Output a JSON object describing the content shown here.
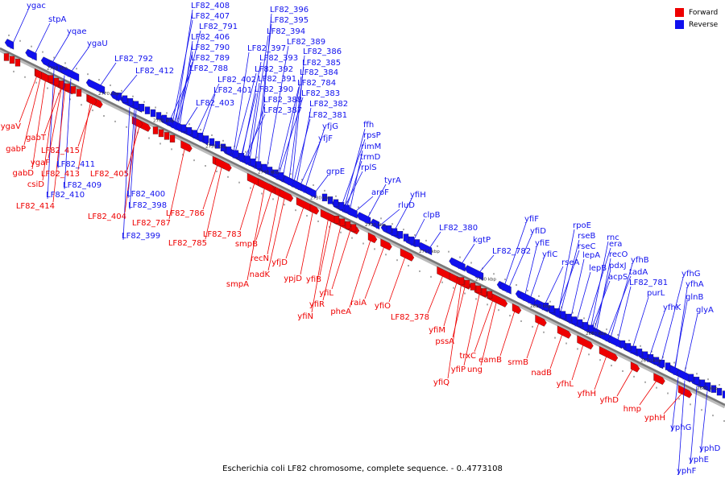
{
  "legend": {
    "forward_label": "Forward",
    "reverse_label": "Reverse",
    "forward_color": "#ee0000",
    "reverse_color": "#1010ee"
  },
  "caption": "Escherichia coli LF82 chromosome, complete sequence. - 0..4773108",
  "ticks": [
    "2780 kbp",
    "2770 kbp",
    "2760 kbp",
    "2750 kbp",
    "2740 kbp",
    "2730 kbp",
    "2720 kbp",
    "2710 kbp",
    "2700 kbp",
    "2690 kbp",
    "2680 kbp",
    "2670 kbp",
    "2660 kbp"
  ],
  "reverse_genes": [
    "ygac",
    "stpA",
    "yqae",
    "ygaU",
    "LF82_792",
    "LF82_412",
    "LF82_408",
    "LF82_407",
    "LF82_791",
    "LF82_406",
    "LF82_790",
    "LF82_789",
    "LF82_788",
    "LF82_402",
    "LF82_401",
    "LF82_403",
    "LF82_396",
    "LF82_395",
    "LF82_394",
    "LF82_397",
    "LF82_389",
    "LF82_393",
    "LF82_386",
    "LF82_392",
    "LF82_385",
    "LF82_391",
    "LF82_384",
    "LF82_390",
    "LF82_784",
    "LF82_388",
    "LF82_383",
    "LF82_387",
    "LF82_382",
    "LF82_381",
    "yfjG",
    "yfjF",
    "ffh",
    "rpsP",
    "rimM",
    "trmD",
    "rplS",
    "grpE",
    "tyrA",
    "aroF",
    "yfiH",
    "rluD",
    "clpB",
    "LF82_380",
    "kgtP",
    "LF82_782",
    "yfiF",
    "yfiD",
    "yfiE",
    "yfiC",
    "rpoE",
    "rseB",
    "rseC",
    "rseA",
    "lepA",
    "lepB",
    "rnc",
    "era",
    "recO",
    "pdxJ",
    "acpS",
    "yfhB",
    "tadA",
    "LF82_781",
    "purL",
    "yfhK",
    "yfhG",
    "yfhA",
    "glnB",
    "glyA",
    "yphG",
    "yphD",
    "yphE",
    "yphF",
    "LF82_411",
    "LF82_409",
    "LF82_410",
    "LF82_400",
    "LF82_398",
    "LF82_399"
  ],
  "forward_genes": [
    "ygaV",
    "gabT",
    "gabP",
    "LF82_415",
    "ygaF",
    "LF82_413",
    "gabD",
    "csiD",
    "LF82_414",
    "LF82_405",
    "LF82_404",
    "LF82_787",
    "LF82_786",
    "LF82_785",
    "LF82_783",
    "smpB",
    "recN",
    "nadK",
    "smpA",
    "yfjD",
    "ypjD",
    "yfiB",
    "yfiL",
    "yfiR",
    "yfiN",
    "pheA",
    "raiA",
    "yfiO",
    "LF82_378",
    "yfiM",
    "pssA",
    "yfiQ",
    "yfiP",
    "trxC",
    "ung",
    "eamB",
    "srmB",
    "nadB",
    "yfhL",
    "yfhH",
    "yfhD",
    "hmp",
    "yphH"
  ]
}
